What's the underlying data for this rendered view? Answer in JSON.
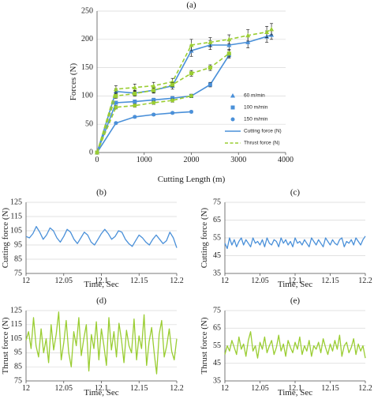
{
  "colors": {
    "blue": "#4a90d9",
    "green": "#9acd32",
    "grid": "#d9d9d9",
    "axis": "#555555",
    "errorbar": "#222222"
  },
  "chart_data": [
    {
      "id": "a",
      "panel_label": "(a)",
      "type": "line",
      "xlabel": "Cutting Length (m)",
      "ylabel": "Forces (N)",
      "xlim": [
        0,
        4000
      ],
      "ylim": [
        0,
        250
      ],
      "xticks": [
        0,
        1000,
        2000,
        3000,
        4000
      ],
      "yticks": [
        0,
        50,
        100,
        150,
        200,
        250
      ],
      "grid": true,
      "legend_position": "bottom-right",
      "legend": [
        {
          "label": "60 m/min",
          "marker": "triangle"
        },
        {
          "label": "100 m/min",
          "marker": "square"
        },
        {
          "label": "150 m/min",
          "marker": "circle"
        },
        {
          "label": "Cutting force (N)",
          "line": "solid"
        },
        {
          "label": "Thrust force (N)",
          "line": "dashed"
        }
      ],
      "series": [
        {
          "name": "Cutting force (N)",
          "speed": "60 m/min",
          "style": "solid",
          "marker": "triangle",
          "x": [
            0,
            400,
            800,
            1200,
            1600,
            2000,
            2400,
            2800,
            3200,
            3600,
            3700
          ],
          "y": [
            0,
            108,
            105,
            110,
            118,
            180,
            190,
            190,
            195,
            205,
            208
          ],
          "err": [
            0,
            5,
            5,
            5,
            6,
            10,
            8,
            8,
            10,
            10,
            8
          ]
        },
        {
          "name": "Thrust force (N)",
          "speed": "60 m/min",
          "style": "dashed",
          "marker": "triangle",
          "x": [
            0,
            400,
            800,
            1200,
            1600,
            2000,
            2400,
            2800,
            3200,
            3600,
            3700
          ],
          "y": [
            0,
            112,
            115,
            118,
            125,
            190,
            195,
            200,
            207,
            213,
            218
          ],
          "err": [
            0,
            6,
            6,
            6,
            6,
            10,
            8,
            8,
            10,
            10,
            10
          ]
        },
        {
          "name": "Cutting force (N)",
          "speed": "100 m/min",
          "style": "solid",
          "marker": "square",
          "x": [
            0,
            400,
            800,
            1200,
            1600,
            2000,
            2400,
            2800
          ],
          "y": [
            0,
            88,
            90,
            93,
            96,
            100,
            120,
            172
          ],
          "err": [
            0,
            3,
            3,
            3,
            3,
            3,
            4,
            5
          ]
        },
        {
          "name": "Thrust force (N)",
          "speed": "100 m/min",
          "style": "dashed",
          "marker": "square",
          "x": [
            0,
            400,
            800,
            1200,
            1600,
            2000,
            2400,
            2800
          ],
          "y": [
            0,
            100,
            104,
            110,
            120,
            140,
            150,
            175
          ],
          "err": [
            0,
            4,
            4,
            4,
            4,
            5,
            5,
            6
          ]
        },
        {
          "name": "Cutting force (N)",
          "speed": "150 m/min",
          "style": "solid",
          "marker": "circle",
          "x": [
            0,
            400,
            800,
            1200,
            1600,
            2000
          ],
          "y": [
            0,
            52,
            63,
            67,
            70,
            72
          ],
          "err": [
            0,
            2,
            2,
            2,
            2,
            2
          ]
        },
        {
          "name": "Thrust force (N)",
          "speed": "150 m/min",
          "style": "dashed",
          "marker": "circle",
          "x": [
            0,
            400,
            800,
            1200,
            1600,
            2000
          ],
          "y": [
            0,
            80,
            83,
            88,
            92,
            100
          ],
          "err": [
            0,
            3,
            3,
            3,
            3,
            3
          ]
        }
      ]
    },
    {
      "id": "b",
      "panel_label": "(b)",
      "type": "line",
      "xlabel": "Time, Sec",
      "ylabel": "Cutting force (N)",
      "xlim": [
        12,
        12.2
      ],
      "ylim": [
        75,
        125
      ],
      "xticks": [
        12,
        12.05,
        12.1,
        12.15,
        12.2
      ],
      "xticklabels": [
        "12",
        "12.05",
        "12.1",
        "12.15",
        "12.2"
      ],
      "yticks": [
        75,
        85,
        95,
        105,
        115,
        125
      ],
      "grid": true,
      "color_key": "blue",
      "series": [
        {
          "x_start": 12,
          "x_step": 0.005,
          "y": [
            101,
            100,
            103,
            108,
            104,
            99,
            102,
            107,
            105,
            100,
            97,
            101,
            106,
            104,
            99,
            96,
            100,
            104,
            102,
            97,
            95,
            99,
            103,
            106,
            103,
            99,
            101,
            105,
            104,
            99,
            96,
            94,
            98,
            102,
            100,
            97,
            95,
            99,
            102,
            99,
            96,
            98,
            104,
            100,
            93
          ]
        }
      ]
    },
    {
      "id": "c",
      "panel_label": "(c)",
      "type": "line",
      "xlabel": "Time, Sec",
      "ylabel": "Cutting force (N)",
      "xlim": [
        12,
        12.2
      ],
      "ylim": [
        35,
        75
      ],
      "xticks": [
        12,
        12.05,
        12.1,
        12.15,
        12.2
      ],
      "xticklabels": [
        "12",
        "12.05",
        "12.1",
        "12.15",
        "12.2"
      ],
      "yticks": [
        35,
        45,
        55,
        65,
        75
      ],
      "grid": true,
      "color_key": "blue",
      "series": [
        {
          "x_start": 12,
          "x_step": 0.0033,
          "y": [
            52,
            49,
            55,
            51,
            54,
            50,
            53,
            55,
            51,
            54,
            52,
            50,
            55,
            52,
            53,
            51,
            54,
            50,
            55,
            52,
            51,
            54,
            53,
            50,
            55,
            52,
            54,
            51,
            53,
            50,
            55,
            52,
            53,
            51,
            54,
            52,
            50,
            55,
            53,
            51,
            54,
            52,
            50,
            55,
            53,
            51,
            54,
            52,
            51,
            54,
            55,
            50,
            53,
            52,
            54,
            51,
            55,
            53,
            51,
            54,
            56
          ]
        }
      ]
    },
    {
      "id": "d",
      "panel_label": "(d)",
      "type": "line",
      "xlabel": "Time, Sec",
      "ylabel": "Thrust force (N)",
      "xlim": [
        12,
        12.2
      ],
      "ylim": [
        75,
        125
      ],
      "xticks": [
        12,
        12.05,
        12.1,
        12.15,
        12.2
      ],
      "xticklabels": [
        "12",
        "12.05",
        "12.1",
        "12.15",
        "12.2"
      ],
      "yticks": [
        75,
        85,
        95,
        105,
        115,
        125
      ],
      "grid": true,
      "color_key": "green",
      "series": [
        {
          "x_start": 12,
          "x_step": 0.0033,
          "y": [
            104,
            110,
            98,
            120,
            100,
            92,
            112,
            95,
            105,
            88,
            115,
            97,
            108,
            124,
            90,
            102,
            118,
            95,
            85,
            110,
            100,
            120,
            93,
            105,
            115,
            82,
            108,
            98,
            117,
            90,
            112,
            100,
            86,
            120,
            97,
            110,
            92,
            116,
            104,
            88,
            111,
            100,
            95,
            119,
            90,
            107,
            98,
            122,
            86,
            103,
            113,
            95,
            80,
            108,
            118,
            92,
            100,
            112,
            96,
            90,
            105
          ]
        }
      ]
    },
    {
      "id": "e",
      "panel_label": "(e)",
      "type": "line",
      "xlabel": "Time, Sec",
      "ylabel": "Thrust force (N)",
      "xlim": [
        12,
        12.2
      ],
      "ylim": [
        35,
        75
      ],
      "xticks": [
        12,
        12.05,
        12.1,
        12.15,
        12.2
      ],
      "xticklabels": [
        "12",
        "12.05",
        "12.1",
        "12.15",
        "12.2"
      ],
      "yticks": [
        35,
        45,
        55,
        65,
        75
      ],
      "grid": true,
      "color_key": "green",
      "series": [
        {
          "x_start": 12,
          "x_step": 0.0033,
          "y": [
            50,
            55,
            52,
            58,
            54,
            50,
            60,
            53,
            56,
            49,
            58,
            63,
            52,
            55,
            48,
            57,
            53,
            60,
            51,
            55,
            58,
            50,
            54,
            61,
            52,
            56,
            49,
            58,
            54,
            51,
            57,
            53,
            60,
            50,
            55,
            52,
            58,
            49,
            55,
            53,
            57,
            51,
            59,
            54,
            50,
            56,
            52,
            58,
            53,
            61,
            49,
            55,
            57,
            51,
            54,
            59,
            50,
            56,
            52,
            55,
            48
          ]
        }
      ]
    }
  ]
}
